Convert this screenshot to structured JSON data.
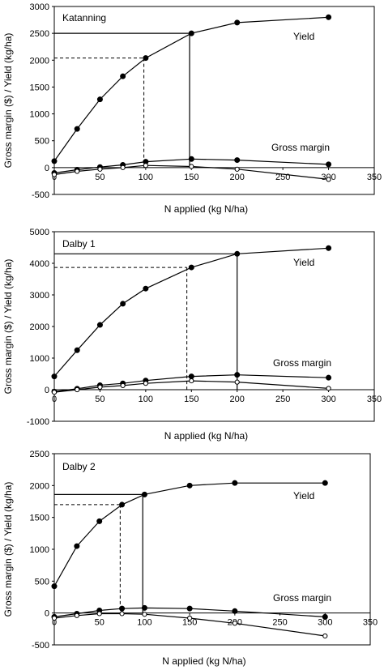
{
  "chart_data": [
    {
      "type": "line",
      "site_label": "Katanning",
      "xlabel": "N applied (kg N/ha)",
      "ylabel": "Gross margin ($) / Yield (kg/ha)",
      "xlim": [
        0,
        350
      ],
      "ylim": [
        -500,
        3000
      ],
      "xticks": [
        "0",
        "50",
        "100",
        "150",
        "200",
        "250",
        "300",
        "350"
      ],
      "yticks": [
        "-500",
        "0",
        "500",
        "1000",
        "1500",
        "2000",
        "2500",
        "3000"
      ],
      "series": [
        {
          "name": "Yield",
          "marker": "filled-circle",
          "x": [
            0,
            25,
            50,
            75,
            100,
            150,
            200,
            300
          ],
          "y": [
            120,
            720,
            1270,
            1700,
            2040,
            2500,
            2700,
            2800
          ]
        },
        {
          "name": "Gross margin",
          "marker": "filled-circle",
          "x": [
            0,
            25,
            50,
            75,
            100,
            150,
            200,
            300
          ],
          "y": [
            -100,
            -40,
            10,
            50,
            110,
            160,
            140,
            60
          ]
        },
        {
          "marker": "open-circle",
          "x": [
            0,
            25,
            50,
            75,
            100,
            150,
            200,
            300
          ],
          "y": [
            -130,
            -70,
            -30,
            0,
            40,
            20,
            -30,
            -220
          ]
        }
      ],
      "guides": {
        "dashed": {
          "x": 98,
          "y": 2040
        },
        "solid": {
          "x": 148,
          "y": 2500
        }
      },
      "grid": false,
      "legend": "none"
    },
    {
      "type": "line",
      "site_label": "Dalby 1",
      "xlabel": "N applied (kg N/ha)",
      "ylabel": "Gross margin ($) / Yield (kg/ha)",
      "xlim": [
        0,
        350
      ],
      "ylim": [
        -1000,
        5000
      ],
      "xticks": [
        "0",
        "50",
        "100",
        "150",
        "200",
        "250",
        "300",
        "350"
      ],
      "yticks": [
        "-1000",
        "0",
        "1000",
        "2000",
        "3000",
        "4000",
        "5000"
      ],
      "series": [
        {
          "name": "Yield",
          "marker": "filled-circle",
          "x": [
            0,
            25,
            50,
            75,
            100,
            150,
            200,
            300
          ],
          "y": [
            420,
            1250,
            2050,
            2720,
            3200,
            3870,
            4300,
            4480
          ]
        },
        {
          "name": "Gross margin",
          "marker": "filled-circle",
          "x": [
            0,
            25,
            50,
            75,
            100,
            150,
            200,
            300
          ],
          "y": [
            -60,
            30,
            140,
            200,
            290,
            420,
            470,
            380
          ]
        },
        {
          "marker": "open-circle",
          "x": [
            0,
            25,
            50,
            75,
            100,
            150,
            200,
            300
          ],
          "y": [
            -80,
            0,
            80,
            130,
            200,
            280,
            240,
            40
          ]
        }
      ],
      "guides": {
        "dashed": {
          "x": 145,
          "y": 3870
        },
        "solid": {
          "x": 200,
          "y": 4300
        }
      },
      "grid": false,
      "legend": "none"
    },
    {
      "type": "line",
      "site_label": "Dalby 2",
      "xlabel": "N applied (kg N/ha)",
      "ylabel": "Gross margin ($) / Yield (kg/ha)",
      "xlim": [
        0,
        350
      ],
      "ylim": [
        -500,
        2500
      ],
      "xticks": [
        "0",
        "50",
        "100",
        "150",
        "200",
        "250",
        "300",
        "350"
      ],
      "yticks": [
        "-500",
        "0",
        "500",
        "1000",
        "1500",
        "2000",
        "2500"
      ],
      "series": [
        {
          "name": "Yield",
          "marker": "filled-circle",
          "x": [
            0,
            25,
            50,
            75,
            100,
            150,
            200,
            300
          ],
          "y": [
            420,
            1050,
            1440,
            1700,
            1860,
            2000,
            2040,
            2040
          ]
        },
        {
          "name": "Gross margin",
          "marker": "filled-circle",
          "x": [
            0,
            25,
            50,
            75,
            100,
            150,
            200,
            300
          ],
          "y": [
            -60,
            -10,
            40,
            70,
            80,
            70,
            30,
            -60
          ]
        },
        {
          "marker": "open-circle",
          "x": [
            0,
            25,
            50,
            75,
            100,
            150,
            200,
            300
          ],
          "y": [
            -80,
            -40,
            -10,
            -10,
            -20,
            -80,
            -160,
            -360
          ]
        }
      ],
      "guides": {
        "dashed": {
          "x": 73,
          "y": 1700
        },
        "solid": {
          "x": 98,
          "y": 1860
        }
      },
      "grid": false,
      "legend": "none"
    }
  ]
}
